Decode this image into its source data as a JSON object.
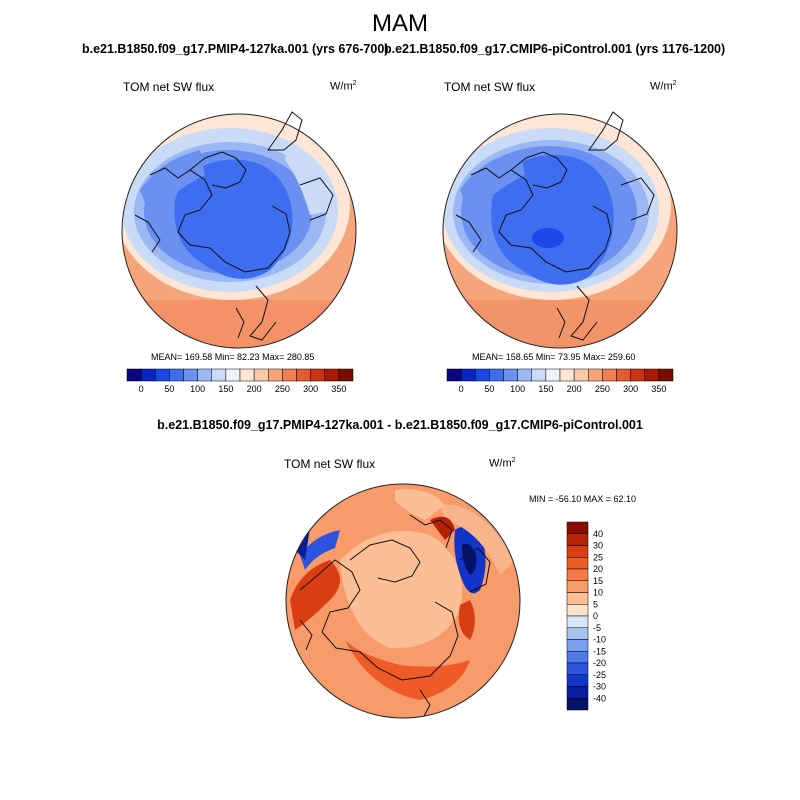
{
  "figure": {
    "season": "MAM",
    "panels": [
      {
        "title": "b.e21.B1850.f09_g17.PMIP4-127ka.001 (yrs 676-700)",
        "variable": "TOM net SW flux",
        "units": "W/m",
        "units_exp": "2",
        "stats": "MEAN= 169.58  Min=  82.23  Max= 280.85"
      },
      {
        "title": "b.e21.B1850.f09_g17.CMIP6-piControl.001 (yrs 1176-1200)",
        "variable": "TOM net SW flux",
        "units": "W/m",
        "units_exp": "2",
        "stats": "MEAN= 158.65  Min=  73.95  Max= 259.60"
      },
      {
        "title": "b.e21.B1850.f09_g17.PMIP4-127ka.001 - b.e21.B1850.f09_g17.CMIP6-piControl.001",
        "variable": "TOM net SW flux",
        "units": "W/m",
        "units_exp": "2",
        "stats": "MIN = -56.10 MAX =  62.10"
      }
    ],
    "horizontal_colorbar": {
      "tick_labels": [
        "0",
        "50",
        "100",
        "150",
        "200",
        "250",
        "300",
        "350"
      ],
      "colors": [
        "#08087a",
        "#0a24c4",
        "#1c48ea",
        "#3f6df0",
        "#6a90f2",
        "#9bb8f4",
        "#c9dbf6",
        "#eef3fb",
        "#fde6d6",
        "#fbc8a9",
        "#f6a47c",
        "#f07e54",
        "#e65a30",
        "#cc3413",
        "#a81a06",
        "#7a0a00"
      ]
    },
    "vertical_colorbar": {
      "tick_labels": [
        "40",
        "30",
        "25",
        "20",
        "15",
        "10",
        "5",
        "0",
        "-5",
        "-10",
        "-15",
        "-20",
        "-25",
        "-30",
        "-40"
      ],
      "colors": [
        "#8a0c00",
        "#b52205",
        "#d93d12",
        "#ee5a28",
        "#f57a45",
        "#f89b6a",
        "#fbbe95",
        "#fde2cc",
        "#d8e6f8",
        "#a9c3f1",
        "#7c9ef0",
        "#4f78ea",
        "#2c54e0",
        "#1334c8",
        "#071f9c",
        "#03116a"
      ]
    },
    "maps": [
      {
        "ocean_color": "#f6a47c",
        "ice_color": "#3f6df0"
      },
      {
        "ocean_color": "#f6a47c",
        "ice_color": "#3f6df0"
      },
      {
        "ocean_color": "#f89b6a",
        "ice_color": "#fbbe95"
      }
    ]
  }
}
